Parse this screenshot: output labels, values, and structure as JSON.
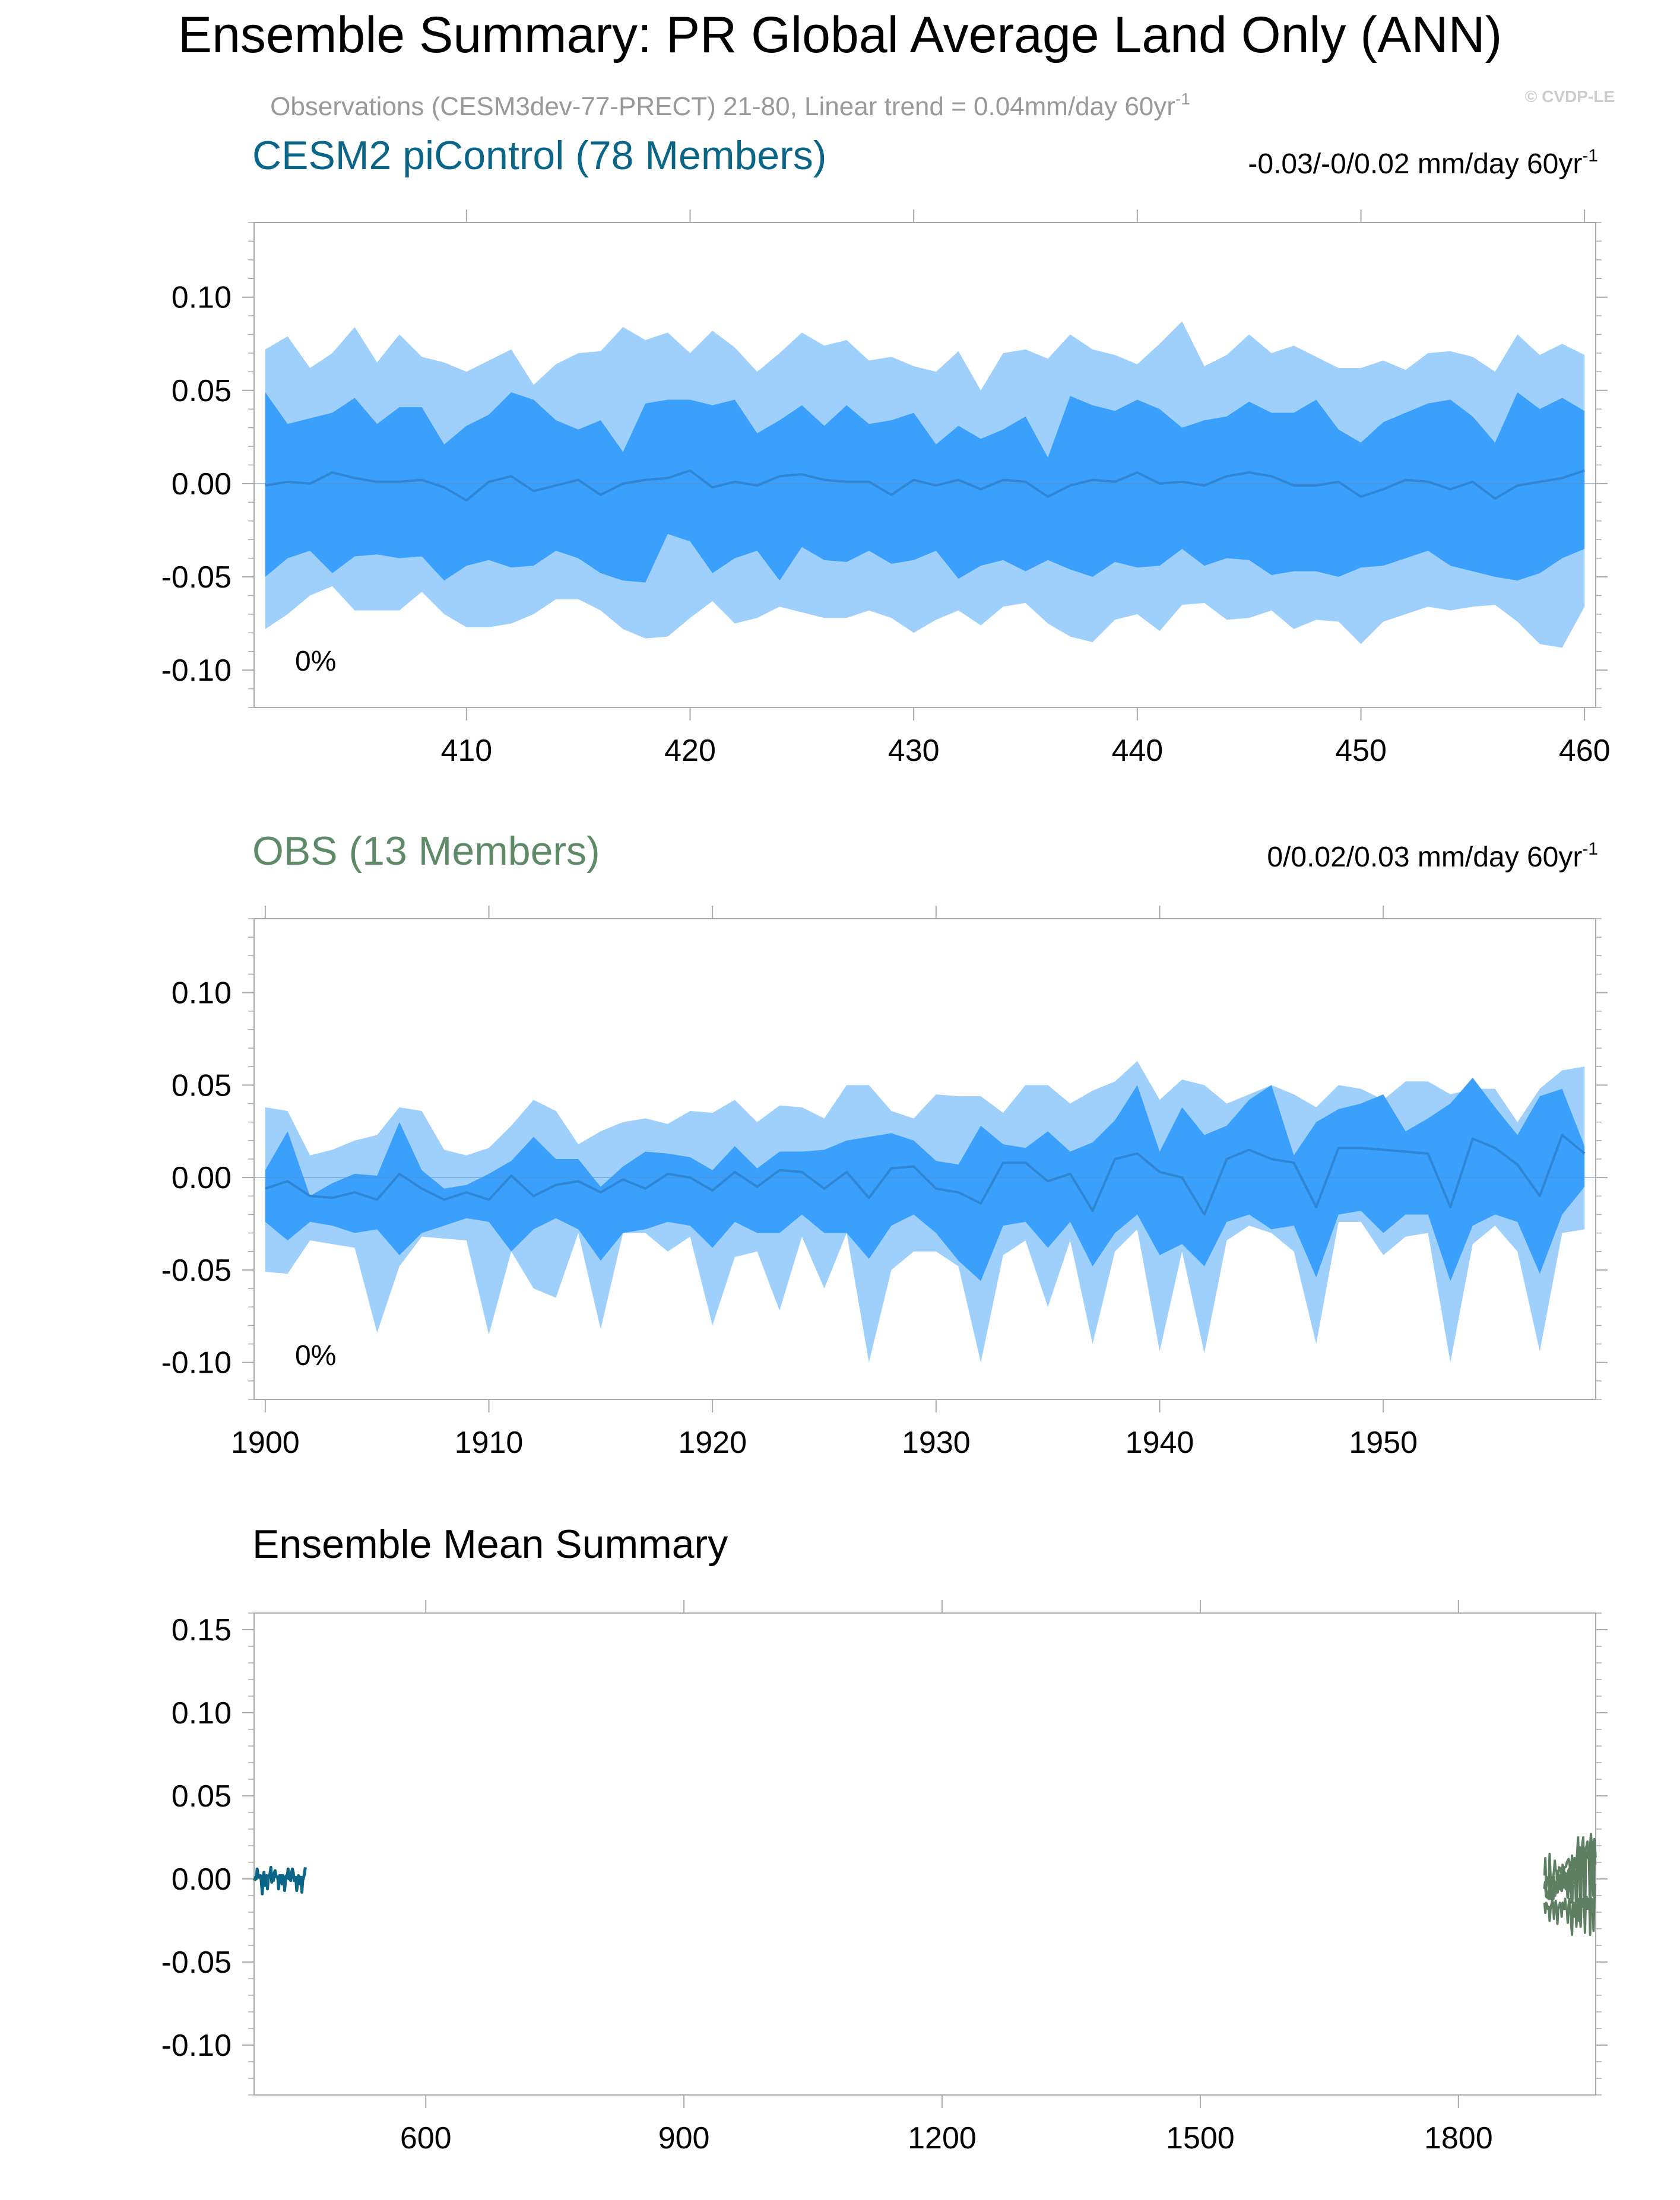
{
  "figure": {
    "title": "Ensemble Summary: PR Global Average Land Only (ANN)",
    "subtitle": "Observations (CESM3dev-77-PRECT) 21-80, Linear trend = 0.04mm/day 60yr",
    "subtitle_sup": "-1",
    "copyright": "© CVDP-LE"
  },
  "colors": {
    "light_band": "#9fd0fb",
    "dark_band": "#3aa0fc",
    "mean_line": "#2f86d4",
    "cesm_title": "#0b6587",
    "obs_title": "#5f8a68",
    "obs_line": "#5e7f62",
    "axis": "#aaaaaa",
    "text": "#000000",
    "subtitle": "#999999",
    "copyright": "#cccccc"
  },
  "chart_data": [
    {
      "type": "area",
      "name": "cesm-panel",
      "title": "CESM2 piControl (78 Members)",
      "trend_label": "-0.03/-0/0.02 mm/day 60yr",
      "trend_sup": "-1",
      "percent_label": "0%",
      "xlim": [
        400.5,
        460.5
      ],
      "ylim": [
        -0.12,
        0.14
      ],
      "yticks": [
        0.1,
        0.05,
        0.0,
        -0.05,
        -0.1
      ],
      "ytick_labels": [
        "0.10",
        "0.05",
        "0.00",
        "-0.05",
        "-0.10"
      ],
      "xticks": [
        410,
        420,
        430,
        440,
        450,
        460
      ],
      "xtick_labels": [
        "410",
        "420",
        "430",
        "440",
        "450",
        "460"
      ],
      "x_start": 401,
      "outer_upper": [
        0.072,
        0.079,
        0.062,
        0.07,
        0.084,
        0.065,
        0.08,
        0.068,
        0.065,
        0.06,
        0.066,
        0.072,
        0.053,
        0.064,
        0.07,
        0.071,
        0.084,
        0.077,
        0.081,
        0.07,
        0.082,
        0.073,
        0.06,
        0.07,
        0.081,
        0.074,
        0.077,
        0.066,
        0.068,
        0.063,
        0.06,
        0.071,
        0.05,
        0.07,
        0.072,
        0.067,
        0.08,
        0.072,
        0.069,
        0.064,
        0.075,
        0.087,
        0.063,
        0.069,
        0.08,
        0.07,
        0.074,
        0.068,
        0.062,
        0.062,
        0.066,
        0.061,
        0.07,
        0.071,
        0.068,
        0.06,
        0.08,
        0.069,
        0.075,
        0.069
      ],
      "dark_upper": [
        0.049,
        0.032,
        0.035,
        0.038,
        0.046,
        0.032,
        0.041,
        0.041,
        0.021,
        0.031,
        0.037,
        0.049,
        0.045,
        0.034,
        0.029,
        0.034,
        0.017,
        0.043,
        0.045,
        0.045,
        0.042,
        0.045,
        0.027,
        0.034,
        0.042,
        0.031,
        0.042,
        0.032,
        0.034,
        0.038,
        0.021,
        0.031,
        0.024,
        0.029,
        0.036,
        0.014,
        0.047,
        0.042,
        0.039,
        0.045,
        0.04,
        0.03,
        0.034,
        0.036,
        0.044,
        0.038,
        0.038,
        0.045,
        0.029,
        0.022,
        0.033,
        0.038,
        0.043,
        0.045,
        0.036,
        0.022,
        0.049,
        0.04,
        0.046,
        0.039
      ],
      "mean": [
        -0.001,
        0.001,
        0.0,
        0.006,
        0.003,
        0.001,
        0.001,
        0.002,
        -0.002,
        -0.009,
        0.001,
        0.004,
        -0.004,
        -0.001,
        0.002,
        -0.006,
        0.0,
        0.002,
        0.003,
        0.007,
        -0.002,
        0.001,
        -0.001,
        0.004,
        0.005,
        0.002,
        0.001,
        0.001,
        -0.006,
        0.002,
        -0.001,
        0.002,
        -0.003,
        0.002,
        0.001,
        -0.007,
        -0.001,
        0.002,
        0.001,
        0.006,
        0.0,
        0.001,
        -0.001,
        0.004,
        0.006,
        0.004,
        -0.001,
        -0.001,
        0.001,
        -0.007,
        -0.003,
        0.002,
        0.001,
        -0.003,
        0.001,
        -0.008,
        -0.001,
        0.001,
        0.003,
        0.007
      ],
      "dark_lower": [
        -0.05,
        -0.04,
        -0.036,
        -0.048,
        -0.039,
        -0.038,
        -0.04,
        -0.039,
        -0.052,
        -0.044,
        -0.041,
        -0.045,
        -0.044,
        -0.036,
        -0.04,
        -0.048,
        -0.052,
        -0.053,
        -0.027,
        -0.031,
        -0.048,
        -0.04,
        -0.036,
        -0.052,
        -0.034,
        -0.041,
        -0.042,
        -0.036,
        -0.043,
        -0.041,
        -0.036,
        -0.051,
        -0.044,
        -0.041,
        -0.047,
        -0.041,
        -0.046,
        -0.05,
        -0.042,
        -0.045,
        -0.044,
        -0.035,
        -0.044,
        -0.04,
        -0.041,
        -0.049,
        -0.047,
        -0.047,
        -0.05,
        -0.045,
        -0.044,
        -0.04,
        -0.036,
        -0.044,
        -0.047,
        -0.05,
        -0.052,
        -0.048,
        -0.04,
        -0.035
      ],
      "outer_lower": [
        -0.078,
        -0.07,
        -0.06,
        -0.055,
        -0.068,
        -0.068,
        -0.068,
        -0.058,
        -0.07,
        -0.077,
        -0.077,
        -0.075,
        -0.07,
        -0.062,
        -0.062,
        -0.068,
        -0.078,
        -0.083,
        -0.082,
        -0.072,
        -0.063,
        -0.075,
        -0.072,
        -0.066,
        -0.069,
        -0.072,
        -0.072,
        -0.068,
        -0.072,
        -0.08,
        -0.073,
        -0.068,
        -0.076,
        -0.066,
        -0.064,
        -0.075,
        -0.082,
        -0.085,
        -0.073,
        -0.07,
        -0.079,
        -0.065,
        -0.064,
        -0.073,
        -0.072,
        -0.068,
        -0.078,
        -0.073,
        -0.074,
        -0.086,
        -0.074,
        -0.07,
        -0.066,
        -0.068,
        -0.066,
        -0.065,
        -0.074,
        -0.086,
        -0.088,
        -0.066
      ]
    },
    {
      "type": "area",
      "name": "obs-panel",
      "title": "OBS (13 Members)",
      "trend_label": "0/0.02/0.03 mm/day 60yr",
      "trend_sup": "-1",
      "percent_label": "0%",
      "xlim": [
        1899.5,
        1959.5
      ],
      "ylim": [
        -0.12,
        0.14
      ],
      "yticks": [
        0.1,
        0.05,
        0.0,
        -0.05,
        -0.1
      ],
      "ytick_labels": [
        "0.10",
        "0.05",
        "0.00",
        "-0.05",
        "-0.10"
      ],
      "xticks": [
        1900,
        1910,
        1920,
        1930,
        1940,
        1950
      ],
      "xtick_labels": [
        "1900",
        "1910",
        "1920",
        "1930",
        "1940",
        "1950"
      ],
      "x_start": 1900,
      "outer_upper": [
        0.038,
        0.036,
        0.012,
        0.015,
        0.02,
        0.023,
        0.038,
        0.036,
        0.015,
        0.012,
        0.016,
        0.028,
        0.042,
        0.036,
        0.018,
        0.025,
        0.03,
        0.032,
        0.029,
        0.036,
        0.035,
        0.042,
        0.03,
        0.039,
        0.038,
        0.032,
        0.05,
        0.05,
        0.036,
        0.032,
        0.045,
        0.044,
        0.044,
        0.035,
        0.05,
        0.05,
        0.04,
        0.047,
        0.052,
        0.063,
        0.042,
        0.053,
        0.05,
        0.04,
        0.045,
        0.05,
        0.045,
        0.038,
        0.05,
        0.048,
        0.042,
        0.052,
        0.052,
        0.045,
        0.048,
        0.048,
        0.03,
        0.048,
        0.058,
        0.06
      ],
      "dark_upper": [
        0.004,
        0.025,
        -0.01,
        -0.003,
        0.002,
        0.001,
        0.03,
        0.004,
        -0.006,
        -0.004,
        0.002,
        0.009,
        0.022,
        0.01,
        0.01,
        -0.005,
        0.006,
        0.014,
        0.013,
        0.011,
        0.004,
        0.017,
        0.005,
        0.014,
        0.014,
        0.015,
        0.02,
        0.022,
        0.024,
        0.02,
        0.009,
        0.007,
        0.028,
        0.018,
        0.016,
        0.025,
        0.014,
        0.019,
        0.031,
        0.05,
        0.014,
        0.038,
        0.023,
        0.028,
        0.042,
        0.05,
        0.012,
        0.03,
        0.037,
        0.04,
        0.045,
        0.025,
        0.032,
        0.04,
        0.054,
        0.038,
        0.023,
        0.044,
        0.048,
        0.017
      ],
      "mean": [
        -0.006,
        -0.002,
        -0.01,
        -0.011,
        -0.008,
        -0.012,
        0.002,
        -0.006,
        -0.012,
        -0.008,
        -0.012,
        0.001,
        -0.01,
        -0.004,
        -0.002,
        -0.008,
        -0.001,
        -0.006,
        0.002,
        0.0,
        -0.007,
        0.003,
        -0.005,
        0.004,
        0.003,
        -0.006,
        0.003,
        -0.011,
        0.005,
        0.006,
        -0.006,
        -0.008,
        -0.014,
        0.008,
        0.008,
        -0.002,
        0.002,
        -0.018,
        0.01,
        0.013,
        0.003,
        0.0,
        -0.02,
        0.01,
        0.015,
        0.01,
        0.008,
        -0.016,
        0.016,
        0.016,
        0.015,
        0.014,
        0.013,
        -0.016,
        0.021,
        0.016,
        0.007,
        -0.01,
        0.023,
        0.013
      ],
      "dark_lower": [
        -0.024,
        -0.034,
        -0.024,
        -0.026,
        -0.03,
        -0.028,
        -0.042,
        -0.03,
        -0.026,
        -0.022,
        -0.024,
        -0.04,
        -0.028,
        -0.022,
        -0.028,
        -0.045,
        -0.03,
        -0.028,
        -0.024,
        -0.026,
        -0.038,
        -0.024,
        -0.03,
        -0.03,
        -0.02,
        -0.03,
        -0.03,
        -0.044,
        -0.026,
        -0.02,
        -0.03,
        -0.045,
        -0.056,
        -0.026,
        -0.024,
        -0.038,
        -0.024,
        -0.048,
        -0.03,
        -0.02,
        -0.042,
        -0.036,
        -0.048,
        -0.024,
        -0.02,
        -0.028,
        -0.026,
        -0.054,
        -0.02,
        -0.018,
        -0.03,
        -0.02,
        -0.02,
        -0.056,
        -0.026,
        -0.02,
        -0.024,
        -0.052,
        -0.02,
        -0.005
      ],
      "outer_lower": [
        -0.051,
        -0.052,
        -0.034,
        -0.036,
        -0.038,
        -0.084,
        -0.048,
        -0.032,
        -0.033,
        -0.034,
        -0.085,
        -0.04,
        -0.06,
        -0.065,
        -0.03,
        -0.082,
        -0.03,
        -0.03,
        -0.04,
        -0.032,
        -0.08,
        -0.043,
        -0.04,
        -0.072,
        -0.032,
        -0.06,
        -0.03,
        -0.1,
        -0.05,
        -0.04,
        -0.04,
        -0.048,
        -0.1,
        -0.042,
        -0.034,
        -0.07,
        -0.034,
        -0.09,
        -0.04,
        -0.028,
        -0.094,
        -0.04,
        -0.095,
        -0.034,
        -0.026,
        -0.03,
        -0.04,
        -0.09,
        -0.024,
        -0.024,
        -0.042,
        -0.032,
        -0.03,
        -0.1,
        -0.036,
        -0.026,
        -0.04,
        -0.094,
        -0.03,
        -0.028
      ]
    },
    {
      "type": "line",
      "name": "ensemble-mean-panel",
      "title": "Ensemble Mean Summary",
      "xlim": [
        400.5,
        1959.5
      ],
      "ylim": [
        -0.13,
        0.16
      ],
      "yticks": [
        0.15,
        0.1,
        0.05,
        0.0,
        -0.05,
        -0.1
      ],
      "ytick_labels": [
        "0.15",
        "0.10",
        "0.05",
        "0.00",
        "-0.05",
        "-0.10"
      ],
      "xticks": [
        600,
        900,
        1200,
        1500,
        1800
      ],
      "xtick_labels": [
        "600",
        "900",
        "1200",
        "1500",
        "1800"
      ],
      "series": [
        {
          "name": "CESM2 piControl",
          "x_start": 401,
          "ref": "cesm"
        },
        {
          "name": "OBS",
          "x_start": 1900,
          "ref": "obs"
        }
      ]
    }
  ]
}
